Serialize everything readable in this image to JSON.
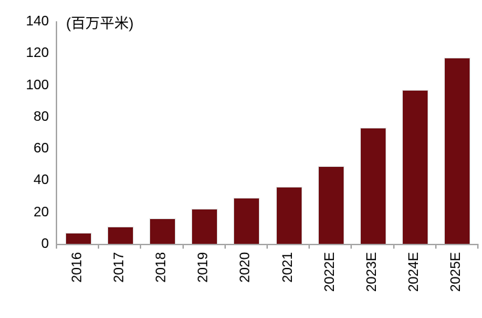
{
  "chart_data": {
    "type": "bar",
    "title": "",
    "unit_label": "(百万平米)",
    "categories": [
      "2016",
      "2017",
      "2018",
      "2019",
      "2020",
      "2021",
      "2022E",
      "2023E",
      "2024E",
      "2025E"
    ],
    "values": [
      7,
      11,
      16,
      22,
      29,
      36,
      49,
      73,
      97,
      117
    ],
    "ylim": [
      0,
      140
    ],
    "ytick_step": 20,
    "yticks": [
      0,
      20,
      40,
      60,
      80,
      100,
      120,
      140
    ],
    "grid": false,
    "legend": false,
    "x_label_rotation_deg": -90
  },
  "colors": {
    "bar_fill": "#6E0B10",
    "bar_border": "#D9D9D9",
    "axis": "#A6A6A6",
    "text": "#000000"
  }
}
